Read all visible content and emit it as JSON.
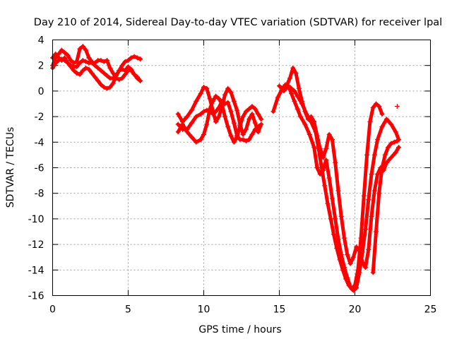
{
  "chart_data": {
    "type": "scatter",
    "title": "Day 210 of 2014, Sidereal Day-to-day VTEC variation (SDTVAR) for receiver lpal",
    "xlabel": "GPS time / hours",
    "ylabel": "SDTVAR / TECUs",
    "xlim": [
      0,
      25
    ],
    "ylim": [
      -16,
      4
    ],
    "xticks": [
      0,
      5,
      10,
      15,
      20,
      25
    ],
    "yticks": [
      4,
      2,
      0,
      -2,
      -4,
      -6,
      -8,
      -10,
      -12,
      -14,
      -16
    ],
    "grid": true,
    "marker": "plus",
    "color": "#ff0000",
    "series": [
      {
        "values": [
          [
            0.0,
            2.0
          ],
          [
            0.2,
            2.6
          ],
          [
            0.4,
            2.9
          ],
          [
            0.6,
            3.2
          ],
          [
            0.8,
            3.0
          ],
          [
            1.0,
            2.8
          ],
          [
            1.2,
            2.4
          ],
          [
            1.4,
            2.2
          ],
          [
            1.6,
            2.3
          ],
          [
            1.8,
            3.3
          ],
          [
            2.0,
            3.5
          ],
          [
            2.2,
            3.2
          ],
          [
            2.4,
            2.6
          ],
          [
            2.6,
            2.3
          ],
          [
            2.8,
            2.0
          ],
          [
            3.0,
            1.8
          ],
          [
            3.2,
            1.6
          ],
          [
            3.4,
            1.4
          ],
          [
            3.6,
            1.2
          ],
          [
            3.8,
            1.0
          ],
          [
            4.0,
            1.0
          ],
          [
            4.2,
            1.2
          ],
          [
            4.4,
            1.6
          ],
          [
            4.6,
            2.0
          ],
          [
            4.8,
            2.3
          ],
          [
            5.0,
            2.4
          ],
          [
            5.2,
            2.6
          ],
          [
            5.4,
            2.7
          ],
          [
            5.6,
            2.6
          ],
          [
            5.8,
            2.5
          ]
        ]
      },
      {
        "values": [
          [
            0.0,
            2.6
          ],
          [
            0.2,
            2.9
          ],
          [
            0.4,
            2.6
          ],
          [
            0.6,
            2.4
          ],
          [
            0.8,
            2.6
          ],
          [
            1.0,
            2.2
          ],
          [
            1.2,
            2.0
          ],
          [
            1.4,
            1.9
          ],
          [
            1.6,
            1.9
          ],
          [
            1.8,
            2.2
          ],
          [
            2.0,
            2.4
          ],
          [
            2.2,
            2.3
          ],
          [
            2.4,
            2.2
          ],
          [
            2.6,
            2.2
          ],
          [
            2.8,
            2.2
          ],
          [
            3.0,
            2.4
          ],
          [
            3.2,
            2.4
          ],
          [
            3.4,
            2.3
          ],
          [
            3.6,
            2.4
          ],
          [
            3.8,
            1.8
          ],
          [
            4.0,
            1.4
          ],
          [
            4.2,
            1.0
          ],
          [
            4.4,
            0.9
          ],
          [
            4.6,
            1.0
          ],
          [
            4.8,
            1.3
          ],
          [
            5.0,
            1.6
          ],
          [
            5.2,
            1.7
          ],
          [
            5.4,
            1.3
          ],
          [
            5.6,
            1.1
          ],
          [
            5.8,
            0.8
          ]
        ]
      },
      {
        "values": [
          [
            0.0,
            1.8
          ],
          [
            0.2,
            2.2
          ],
          [
            0.4,
            2.4
          ],
          [
            0.6,
            2.5
          ],
          [
            0.8,
            2.4
          ],
          [
            1.0,
            2.2
          ],
          [
            1.2,
            1.9
          ],
          [
            1.4,
            1.6
          ],
          [
            1.6,
            1.4
          ],
          [
            1.8,
            1.3
          ],
          [
            2.0,
            1.6
          ],
          [
            2.2,
            1.8
          ],
          [
            2.4,
            1.7
          ],
          [
            2.6,
            1.4
          ],
          [
            2.8,
            1.1
          ],
          [
            3.0,
            0.8
          ],
          [
            3.2,
            0.5
          ],
          [
            3.4,
            0.3
          ],
          [
            3.6,
            0.2
          ],
          [
            3.8,
            0.3
          ],
          [
            4.0,
            0.6
          ],
          [
            4.2,
            1.2
          ],
          [
            4.4,
            1.6
          ],
          [
            4.6,
            1.7
          ],
          [
            4.8,
            1.6
          ],
          [
            5.0,
            1.9
          ],
          [
            5.2,
            1.6
          ],
          [
            5.4,
            1.3
          ],
          [
            5.6,
            1.0
          ],
          [
            5.8,
            0.8
          ]
        ]
      },
      {
        "values": [
          [
            8.3,
            -1.8
          ],
          [
            8.6,
            -2.4
          ],
          [
            8.9,
            -2.0
          ],
          [
            9.2,
            -1.5
          ],
          [
            9.5,
            -0.8
          ],
          [
            9.8,
            -0.2
          ],
          [
            10.0,
            0.3
          ],
          [
            10.2,
            0.2
          ],
          [
            10.4,
            -0.6
          ],
          [
            10.6,
            -1.5
          ],
          [
            10.8,
            -2.4
          ],
          [
            11.0,
            -2.0
          ],
          [
            11.2,
            -1.3
          ],
          [
            11.4,
            -0.3
          ],
          [
            11.6,
            0.2
          ],
          [
            11.8,
            -0.1
          ],
          [
            12.0,
            -0.8
          ],
          [
            12.2,
            -1.5
          ],
          [
            12.4,
            -2.6
          ],
          [
            12.6,
            -3.4
          ],
          [
            12.8,
            -3.0
          ],
          [
            13.0,
            -2.2
          ],
          [
            13.2,
            -1.8
          ],
          [
            13.4,
            -2.5
          ],
          [
            13.6,
            -3.2
          ],
          [
            13.8,
            -2.6
          ]
        ]
      },
      {
        "values": [
          [
            8.3,
            -2.6
          ],
          [
            8.6,
            -3.0
          ],
          [
            8.9,
            -3.0
          ],
          [
            9.2,
            -2.5
          ],
          [
            9.5,
            -2.0
          ],
          [
            9.8,
            -1.8
          ],
          [
            10.0,
            -1.6
          ],
          [
            10.2,
            -1.5
          ],
          [
            10.4,
            -1.5
          ],
          [
            10.6,
            -1.8
          ],
          [
            10.8,
            -1.6
          ],
          [
            11.0,
            -1.3
          ],
          [
            11.2,
            -0.8
          ],
          [
            11.4,
            -1.0
          ],
          [
            11.6,
            -0.9
          ],
          [
            11.8,
            -1.6
          ],
          [
            12.0,
            -2.5
          ],
          [
            12.2,
            -3.5
          ],
          [
            12.4,
            -3.8
          ],
          [
            12.6,
            -3.8
          ],
          [
            12.8,
            -3.9
          ],
          [
            13.0,
            -3.8
          ],
          [
            13.2,
            -3.4
          ],
          [
            13.4,
            -3.0
          ],
          [
            13.6,
            -2.8
          ],
          [
            13.8,
            -2.6
          ]
        ]
      },
      {
        "values": [
          [
            8.3,
            -3.2
          ],
          [
            8.6,
            -2.6
          ],
          [
            8.9,
            -3.2
          ],
          [
            9.2,
            -3.6
          ],
          [
            9.5,
            -4.0
          ],
          [
            9.8,
            -3.8
          ],
          [
            10.0,
            -3.4
          ],
          [
            10.2,
            -2.6
          ],
          [
            10.4,
            -1.4
          ],
          [
            10.6,
            -0.8
          ],
          [
            10.8,
            -0.4
          ],
          [
            11.0,
            -0.6
          ],
          [
            11.2,
            -1.0
          ],
          [
            11.4,
            -2.0
          ],
          [
            11.6,
            -2.8
          ],
          [
            11.8,
            -3.5
          ],
          [
            12.0,
            -4.0
          ],
          [
            12.2,
            -3.6
          ],
          [
            12.4,
            -2.7
          ],
          [
            12.6,
            -2.0
          ],
          [
            12.8,
            -1.6
          ],
          [
            13.0,
            -1.4
          ],
          [
            13.2,
            -1.2
          ],
          [
            13.4,
            -1.4
          ],
          [
            13.6,
            -1.8
          ],
          [
            13.8,
            -2.2
          ]
        ]
      },
      {
        "values": [
          [
            14.6,
            -1.6
          ],
          [
            14.9,
            -0.5
          ],
          [
            15.2,
            0.2
          ],
          [
            15.4,
            0.5
          ],
          [
            15.6,
            0.4
          ],
          [
            15.8,
            0.2
          ],
          [
            16.0,
            0.0
          ],
          [
            16.2,
            -0.4
          ],
          [
            16.5,
            -1.0
          ],
          [
            16.8,
            -1.8
          ],
          [
            17.1,
            -2.4
          ],
          [
            17.4,
            -3.2
          ],
          [
            17.6,
            -4.5
          ],
          [
            17.8,
            -6.0
          ],
          [
            18.0,
            -7.4
          ],
          [
            18.2,
            -8.8
          ],
          [
            18.4,
            -10.0
          ],
          [
            18.6,
            -11.2
          ],
          [
            18.8,
            -12.3
          ],
          [
            19.0,
            -13.2
          ],
          [
            19.2,
            -14.0
          ],
          [
            19.4,
            -14.7
          ],
          [
            19.6,
            -15.2
          ],
          [
            19.8,
            -15.5
          ],
          [
            20.0,
            -15.2
          ],
          [
            20.2,
            -14.0
          ],
          [
            20.4,
            -11.5
          ],
          [
            20.6,
            -8.2
          ],
          [
            20.8,
            -5.0
          ],
          [
            21.0,
            -2.4
          ],
          [
            21.2,
            -1.3
          ],
          [
            21.4,
            -1.0
          ],
          [
            21.6,
            -1.2
          ],
          [
            21.8,
            -1.8
          ]
        ]
      },
      {
        "values": [
          [
            15.0,
            0.4
          ],
          [
            15.3,
            0.0
          ],
          [
            15.6,
            0.4
          ],
          [
            15.8,
            -0.2
          ],
          [
            16.0,
            -0.8
          ],
          [
            16.2,
            -1.4
          ],
          [
            16.4,
            -2.0
          ],
          [
            16.7,
            -2.6
          ],
          [
            17.0,
            -3.4
          ],
          [
            17.3,
            -4.4
          ],
          [
            17.5,
            -6.0
          ],
          [
            17.7,
            -6.5
          ],
          [
            17.9,
            -6.2
          ],
          [
            18.1,
            -5.4
          ],
          [
            18.3,
            -6.8
          ],
          [
            18.5,
            -8.4
          ],
          [
            18.7,
            -10.0
          ],
          [
            18.9,
            -11.6
          ],
          [
            19.1,
            -12.8
          ],
          [
            19.3,
            -13.8
          ],
          [
            19.5,
            -14.6
          ],
          [
            19.7,
            -15.3
          ],
          [
            19.9,
            -15.6
          ],
          [
            20.1,
            -15.4
          ],
          [
            20.3,
            -14.2
          ],
          [
            20.5,
            -12.6
          ],
          [
            20.7,
            -10.8
          ],
          [
            20.9,
            -8.5
          ],
          [
            21.1,
            -6.5
          ],
          [
            21.3,
            -5.0
          ],
          [
            21.5,
            -3.8
          ],
          [
            21.8,
            -2.8
          ],
          [
            22.1,
            -2.2
          ],
          [
            22.4,
            -2.6
          ],
          [
            22.7,
            -3.2
          ],
          [
            22.9,
            -3.8
          ]
        ]
      },
      {
        "values": [
          [
            15.4,
            0.2
          ],
          [
            15.7,
            1.0
          ],
          [
            15.9,
            1.8
          ],
          [
            16.1,
            1.4
          ],
          [
            16.3,
            0.2
          ],
          [
            16.5,
            -0.8
          ],
          [
            16.7,
            -1.6
          ],
          [
            16.9,
            -2.2
          ],
          [
            17.1,
            -2.0
          ],
          [
            17.3,
            -2.4
          ],
          [
            17.5,
            -3.5
          ],
          [
            17.7,
            -4.5
          ],
          [
            17.9,
            -5.2
          ],
          [
            18.1,
            -4.5
          ],
          [
            18.3,
            -3.4
          ],
          [
            18.5,
            -3.8
          ],
          [
            18.7,
            -5.6
          ],
          [
            18.9,
            -7.8
          ],
          [
            19.1,
            -9.8
          ],
          [
            19.3,
            -11.5
          ],
          [
            19.5,
            -12.8
          ],
          [
            19.7,
            -13.5
          ],
          [
            19.9,
            -13.0
          ],
          [
            20.1,
            -12.2
          ],
          [
            20.3,
            -12.5
          ],
          [
            20.5,
            -13.4
          ],
          [
            20.7,
            -13.8
          ],
          [
            20.9,
            -12.4
          ],
          [
            21.1,
            -9.8
          ],
          [
            21.3,
            -7.8
          ],
          [
            21.5,
            -6.5
          ],
          [
            21.7,
            -6.0
          ],
          [
            21.9,
            -6.2
          ],
          [
            22.1,
            -5.6
          ],
          [
            22.4,
            -5.2
          ],
          [
            22.7,
            -4.8
          ],
          [
            22.9,
            -4.4
          ]
        ]
      },
      {
        "values": [
          [
            21.2,
            -14.2
          ],
          [
            21.4,
            -11.0
          ],
          [
            21.6,
            -8.0
          ],
          [
            21.8,
            -6.0
          ],
          [
            22.0,
            -5.0
          ],
          [
            22.2,
            -4.4
          ],
          [
            22.4,
            -4.1
          ],
          [
            22.6,
            -4.0
          ],
          [
            22.8,
            -3.9
          ]
        ]
      },
      {
        "values": [
          [
            22.8,
            -1.2
          ]
        ]
      }
    ]
  }
}
